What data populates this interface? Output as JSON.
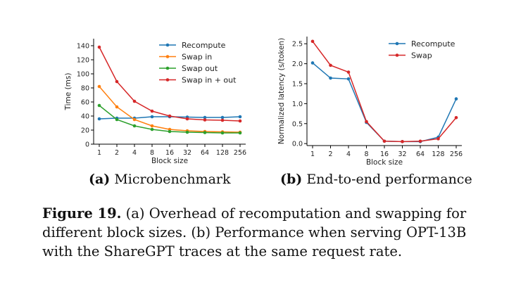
{
  "chart_data": [
    {
      "type": "line",
      "xlabel": "Block size",
      "ylabel": "Time (ms)",
      "x": [
        "1",
        "2",
        "4",
        "8",
        "16",
        "32",
        "64",
        "128",
        "256"
      ],
      "ylim": [
        0,
        150
      ],
      "yticks": [
        0,
        20,
        40,
        60,
        80,
        100,
        120,
        140
      ],
      "legend": "top-right",
      "grid": false,
      "series": [
        {
          "name": "Recompute",
          "color": "#1f77b4",
          "values": [
            36,
            37,
            37,
            39,
            39,
            38.5,
            38,
            38,
            39
          ]
        },
        {
          "name": "Swap in",
          "color": "#ff7f0e",
          "values": [
            82,
            53,
            35,
            26,
            21,
            19,
            18,
            17.5,
            17
          ]
        },
        {
          "name": "Swap out",
          "color": "#2ca02c",
          "values": [
            55,
            35,
            26,
            21,
            18,
            17,
            16.5,
            16,
            16
          ]
        },
        {
          "name": "Swap in + out",
          "color": "#d62728",
          "values": [
            138,
            89,
            61,
            47,
            40,
            36,
            34.5,
            34,
            33
          ]
        }
      ]
    },
    {
      "type": "line",
      "xlabel": "Block size",
      "ylabel": "Normalized latency (s/token)",
      "x": [
        "1",
        "2",
        "4",
        "8",
        "16",
        "32",
        "64",
        "128",
        "256"
      ],
      "ylim": [
        -0.05,
        2.68
      ],
      "yticks": [
        "0.0",
        "0.5",
        "1.0",
        "1.5",
        "2.0",
        "2.5"
      ],
      "legend": "top-right",
      "grid": false,
      "series": [
        {
          "name": "Recompute",
          "color": "#1f77b4",
          "values": [
            2.02,
            1.64,
            1.62,
            0.53,
            0.06,
            0.05,
            0.05,
            0.16,
            1.12
          ]
        },
        {
          "name": "Swap",
          "color": "#d62728",
          "values": [
            2.56,
            1.96,
            1.79,
            0.55,
            0.06,
            0.05,
            0.06,
            0.12,
            0.65
          ]
        }
      ]
    }
  ],
  "subcaptions": {
    "a_label": "(a)",
    "a_text": "Microbenchmark",
    "b_label": "(b)",
    "b_text": "End-to-end performance"
  },
  "figure_caption": {
    "label": "Figure 19.",
    "text": "(a) Overhead of recomputation and swapping for different block sizes. (b) Performance when serving OPT-13B with the ShareGPT traces at the same request rate."
  }
}
